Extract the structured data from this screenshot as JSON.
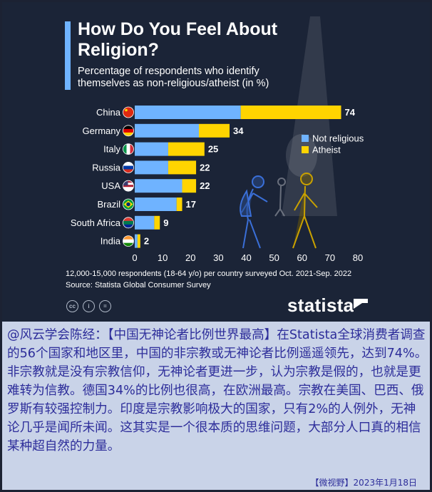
{
  "title": "How Do You Feel About Religion?",
  "subtitle": "Percentage of respondents who identify themselves as non-religious/atheist (in %)",
  "chart_data": {
    "type": "bar",
    "orientation": "horizontal",
    "stacked": true,
    "categories": [
      "China",
      "Germany",
      "Italy",
      "Russia",
      "USA",
      "Brazil",
      "South Africa",
      "India"
    ],
    "totals": [
      74,
      34,
      25,
      22,
      22,
      17,
      9,
      2
    ],
    "series": [
      {
        "name": "Not religious",
        "color": "#6fb3ff",
        "values": [
          38,
          23,
          12,
          12,
          17,
          15,
          7,
          1
        ]
      },
      {
        "name": "Atheist",
        "color": "#ffd400",
        "values": [
          36,
          11,
          13,
          10,
          5,
          2,
          2,
          1
        ]
      }
    ],
    "xlim": [
      0,
      80
    ],
    "xticks": [
      0,
      10,
      20,
      30,
      40,
      50,
      60,
      70,
      80
    ],
    "legend_position": "right",
    "grid": false
  },
  "notes": {
    "survey": "12,000-15,000 respondents (18-64 y/o) per country surveyed Oct. 2021-Sep. 2022",
    "source": "Source: Statista Global Consumer Survey"
  },
  "license_icons": [
    "cc",
    "i",
    "="
  ],
  "brand": "statista",
  "caption": "@风云学会陈经：【中国无神论者比例世界最高】在Statista全球消费者调查的56个国家和地区里，中国的非宗教或无神论者比例遥遥领先，达到74%。非宗教就是没有宗教信仰，无神论者更进一步，认为宗教是假的，也就是更难转为信教。德国34%的比例也很高，在欧洲最高。宗教在美国、巴西、俄罗斯有较强控制力。印度是宗教影响极大的国家，只有2%的人例外，无神论几乎是闻所未闻。这其实是一个很本质的思维问题，大部分人口真的相信某种超自然的力量。",
  "footer": "【微视野】2023年1月18日",
  "colors": {
    "background": "#1b2437",
    "accent": "#6fb3ff",
    "atheist": "#ffd400",
    "caption_text": "#2d2d9a",
    "caption_bg": "#c9d3e8"
  }
}
